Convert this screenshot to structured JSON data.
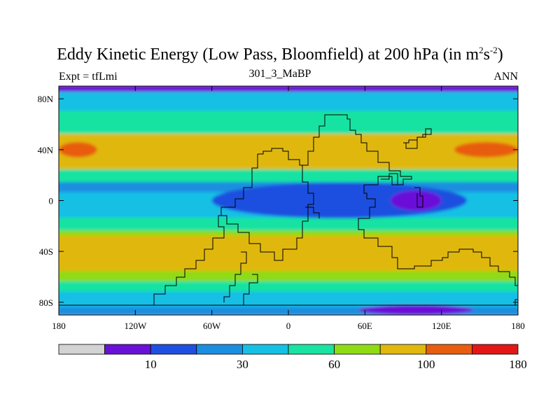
{
  "title": {
    "main": "Eddy Kinetic Energy (Low Pass, Bloomfield) at 200 hPa (in m",
    "sup1": "2",
    "mid": "s",
    "sup2": "-2",
    "close": ")"
  },
  "subtitle": "301_3_MaBP",
  "left_label": "Expt = tfLmi",
  "right_label": "ANN",
  "chart_data": {
    "type": "heatmap",
    "title": "Eddy Kinetic Energy (Low Pass, Bloomfield) at 200 hPa (in m2s-2)",
    "x_range": [
      -180,
      180
    ],
    "y_range": [
      -90,
      90
    ],
    "x_ticks": [
      {
        "value": -180,
        "label": "180"
      },
      {
        "value": -120,
        "label": "120W"
      },
      {
        "value": -60,
        "label": "60W"
      },
      {
        "value": 0,
        "label": "0"
      },
      {
        "value": 60,
        "label": "60E"
      },
      {
        "value": 120,
        "label": "120E"
      },
      {
        "value": 180,
        "label": "180"
      }
    ],
    "y_ticks": [
      {
        "value": 80,
        "label": "80N"
      },
      {
        "value": 40,
        "label": "40N"
      },
      {
        "value": 0,
        "label": "0"
      },
      {
        "value": -40,
        "label": "40S"
      },
      {
        "value": -80,
        "label": "80S"
      }
    ],
    "colors": [
      "#d3d3d3",
      "#6a11d8",
      "#1f4fe0",
      "#1a8ee0",
      "#15c0e4",
      "#18e3a2",
      "#8fdb14",
      "#e0b80e",
      "#e85d10",
      "#e41717"
    ],
    "colorbar_labels": [
      {
        "index": 1,
        "label": "10"
      },
      {
        "index": 3,
        "label": "30"
      },
      {
        "index": 5,
        "label": "60"
      },
      {
        "index": 7,
        "label": "100"
      },
      {
        "index": 9,
        "label": "180"
      }
    ],
    "latitude_band_levels": [
      {
        "lat_min": 85,
        "lat_max": 90,
        "level": 1
      },
      {
        "lat_min": 70,
        "lat_max": 85,
        "level": 4
      },
      {
        "lat_min": 52,
        "lat_max": 70,
        "level": 5
      },
      {
        "lat_min": 24,
        "lat_max": 52,
        "level": 7
      },
      {
        "lat_min": 14,
        "lat_max": 24,
        "level": 5
      },
      {
        "lat_min": 6,
        "lat_max": 14,
        "level": 3
      },
      {
        "lat_min": -14,
        "lat_max": 6,
        "level": 4
      },
      {
        "lat_min": -24,
        "lat_max": -14,
        "level": 5
      },
      {
        "lat_min": -28,
        "lat_max": -24,
        "level": 6
      },
      {
        "lat_min": -56,
        "lat_max": -28,
        "level": 7
      },
      {
        "lat_min": -64,
        "lat_max": -56,
        "level": 6
      },
      {
        "lat_min": -72,
        "lat_max": -64,
        "level": 5
      },
      {
        "lat_min": -84,
        "lat_max": -72,
        "level": 4
      },
      {
        "lat_min": -90,
        "lat_max": -84,
        "level": 3
      }
    ],
    "regional_features": [
      {
        "name": "NH jet max west",
        "lon": [
          -180,
          -150
        ],
        "lat": [
          34,
          46
        ],
        "level": 8
      },
      {
        "name": "NH jet max east",
        "lon": [
          130,
          180
        ],
        "lat": [
          34,
          46
        ],
        "level": 8
      },
      {
        "name": "Tropical minimum",
        "lon": [
          -60,
          140
        ],
        "lat": [
          -14,
          14
        ],
        "level": 2
      },
      {
        "name": "Indian Ocean minimum",
        "lon": [
          80,
          120
        ],
        "lat": [
          -8,
          8
        ],
        "level": 1
      },
      {
        "name": "Antarctic minimum",
        "lon": [
          55,
          145
        ],
        "lat": [
          -90,
          -82
        ],
        "level": 1
      }
    ]
  }
}
